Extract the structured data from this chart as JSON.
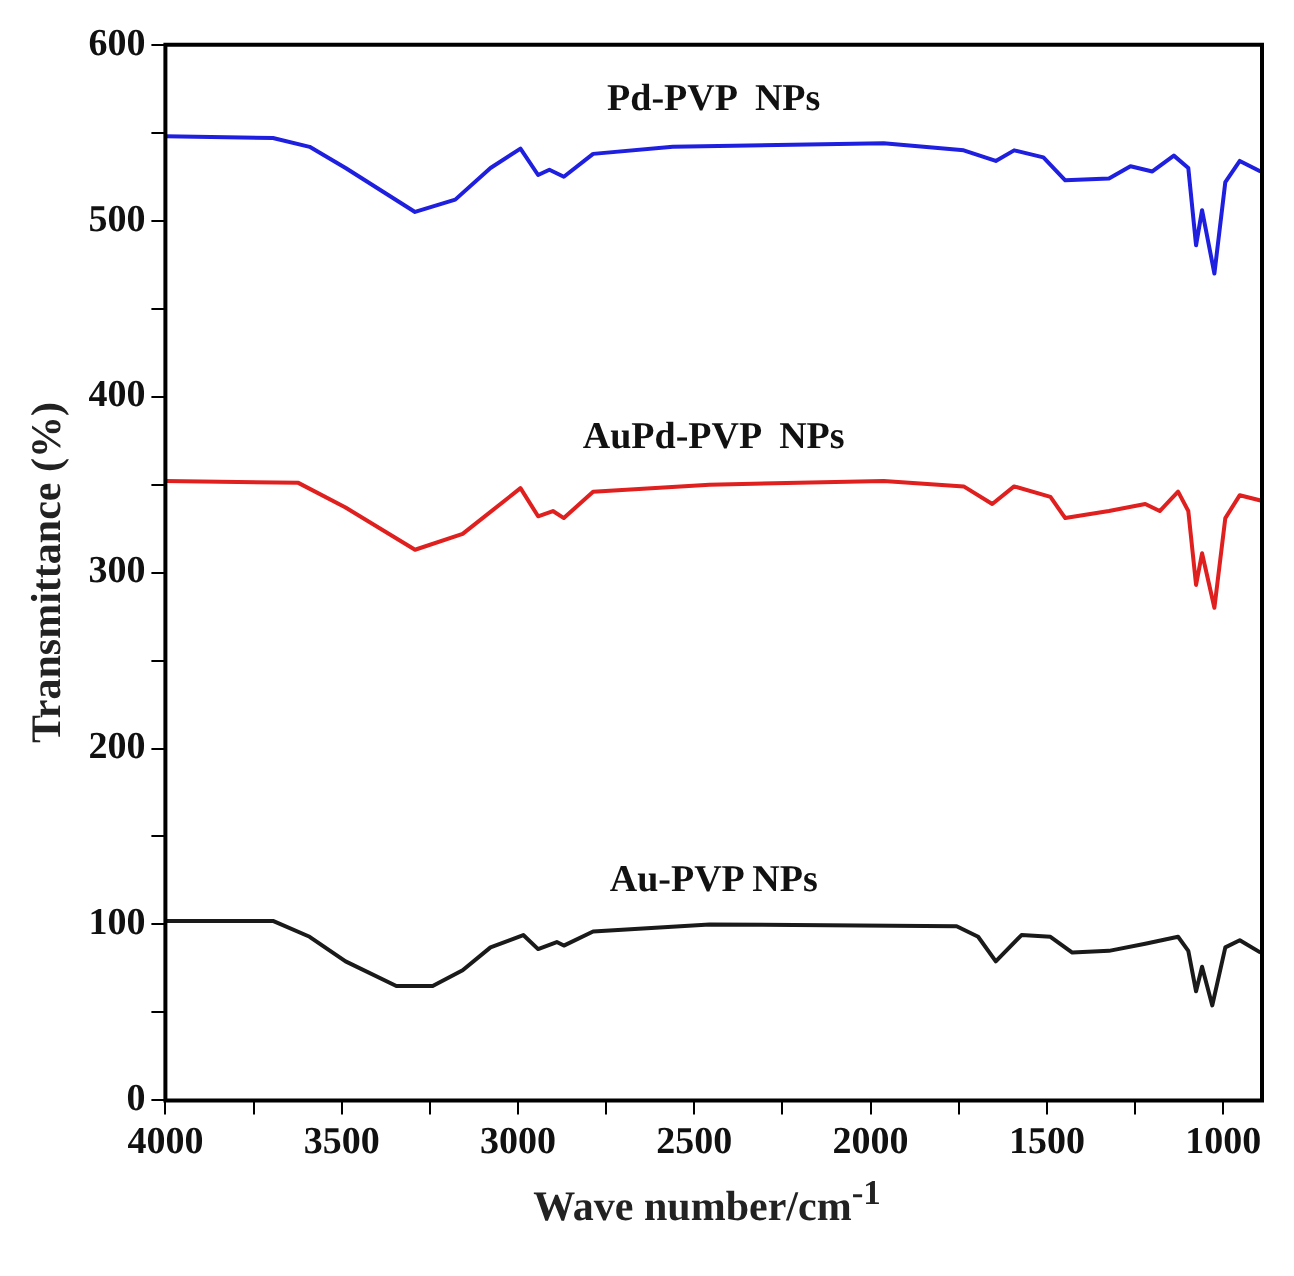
{
  "chart_data": {
    "type": "line",
    "xlabel": "Wave number/cm$^{-1}$",
    "ylabel": "Transmittance (%)",
    "xlim": [
      4000,
      890
    ],
    "ylim": [
      0,
      600
    ],
    "xticks": [
      4000,
      {
        "value": 3750,
        "label": null
      },
      3500,
      {
        "value": 3250,
        "label": null
      },
      3000,
      {
        "value": 2750,
        "label": null
      },
      2500,
      {
        "value": 2250,
        "label": null
      },
      2000,
      {
        "value": 1750,
        "label": null
      },
      1500,
      {
        "value": 1250,
        "label": null
      },
      1000
    ],
    "yticks": [
      0,
      {
        "value": 50,
        "label": null
      },
      100,
      {
        "value": 150,
        "label": null
      },
      200,
      {
        "value": 250,
        "label": null
      },
      300,
      {
        "value": 350,
        "label": null
      },
      400,
      {
        "value": 450,
        "label": null
      },
      500,
      {
        "value": 550,
        "label": null
      },
      600
    ],
    "grid": false,
    "legend": false,
    "marker": "none",
    "line_style": "solid",
    "series": [
      {
        "name": "Pd-PVP  NPs",
        "color": "#1f1fe0",
        "x": [
          4000,
          3695,
          3591,
          3489,
          3292,
          3178,
          3078,
          2993,
          2943,
          2911,
          2870,
          2787,
          2561,
          1963,
          1736,
          1645,
          1593,
          1510,
          1448,
          1324,
          1263,
          1201,
          1140,
          1099,
          1077,
          1060,
          1025,
          994,
          953,
          894
        ],
        "values": [
          548,
          547,
          542,
          530,
          505,
          512,
          530,
          541,
          526,
          529,
          525,
          538,
          542,
          544,
          540,
          534,
          540,
          536,
          523,
          524,
          531,
          528,
          537,
          530,
          486,
          506,
          470,
          522,
          534,
          528
        ]
      },
      {
        "name": "AuPd-PVP  NPs",
        "color": "#e01f1f",
        "x": [
          4000,
          3623,
          3489,
          3292,
          3157,
          2993,
          2943,
          2901,
          2870,
          2787,
          2457,
          1963,
          1736,
          1655,
          1593,
          1490,
          1448,
          1324,
          1221,
          1180,
          1128,
          1099,
          1077,
          1060,
          1025,
          994,
          953,
          894
        ],
        "values": [
          352,
          351,
          337,
          313,
          322,
          348,
          332,
          335,
          331,
          346,
          350,
          352,
          349,
          339,
          349,
          343,
          331,
          335,
          339,
          335,
          346,
          335,
          293,
          311,
          280,
          331,
          344,
          341
        ]
      },
      {
        "name": "Au-PVP NPs",
        "color": "#1a1a1a",
        "x": [
          4000,
          3695,
          3591,
          3489,
          3345,
          3242,
          3157,
          3078,
          2985,
          2943,
          2890,
          2870,
          2787,
          2457,
          1756,
          1695,
          1645,
          1572,
          1490,
          1428,
          1324,
          1221,
          1128,
          1099,
          1077,
          1060,
          1031,
          994,
          953,
          894
        ],
        "values": [
          102,
          102,
          93,
          79,
          65,
          65,
          74,
          87,
          94,
          86,
          90,
          88,
          96,
          100,
          99,
          93,
          79,
          94,
          93,
          84,
          85,
          89,
          93,
          85,
          62,
          76,
          54,
          87,
          91,
          84
        ]
      }
    ]
  }
}
